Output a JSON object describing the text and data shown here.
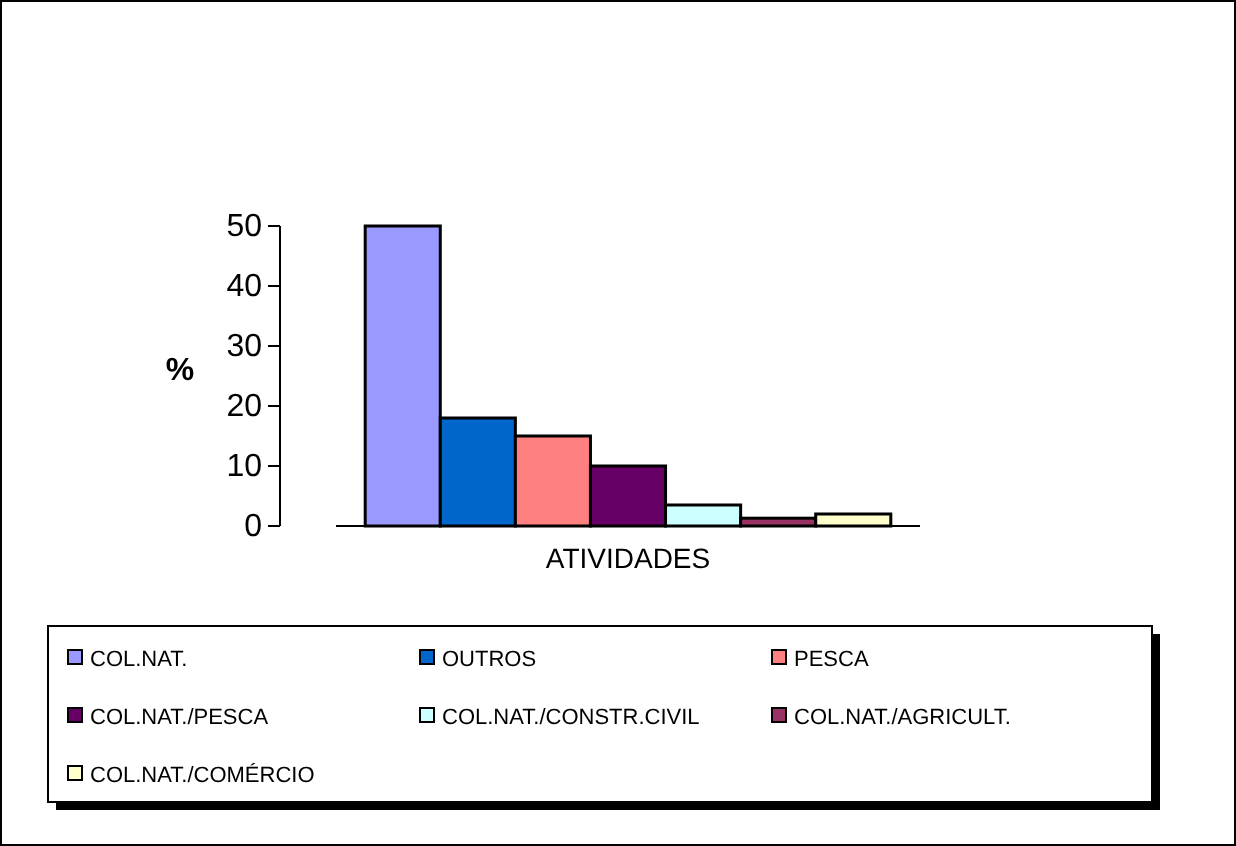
{
  "chart_data": {
    "type": "bar",
    "ylabel": "%",
    "categories": [
      "ATIVIDADES"
    ],
    "ylim": [
      0,
      50
    ],
    "yticks": [
      0,
      10,
      20,
      30,
      40,
      50
    ],
    "grid": false,
    "legend": "bottom",
    "series": [
      {
        "name": "COL.NAT.",
        "color": "#9999ff",
        "values": [
          50
        ]
      },
      {
        "name": "OUTROS",
        "color": "#0066cc",
        "values": [
          18
        ]
      },
      {
        "name": "PESCA",
        "color": "#ff8080",
        "values": [
          15
        ]
      },
      {
        "name": "COL.NAT./PESCA",
        "color": "#660066",
        "values": [
          10
        ]
      },
      {
        "name": "COL.NAT./CONSTR.CIVIL",
        "color": "#ccffff",
        "values": [
          3.5
        ]
      },
      {
        "name": "COL.NAT./AGRICULT.",
        "color": "#993366",
        "values": [
          1.3
        ]
      },
      {
        "name": "COL.NAT./COMÉRCIO",
        "color": "#ffffcc",
        "values": [
          2
        ]
      }
    ]
  }
}
